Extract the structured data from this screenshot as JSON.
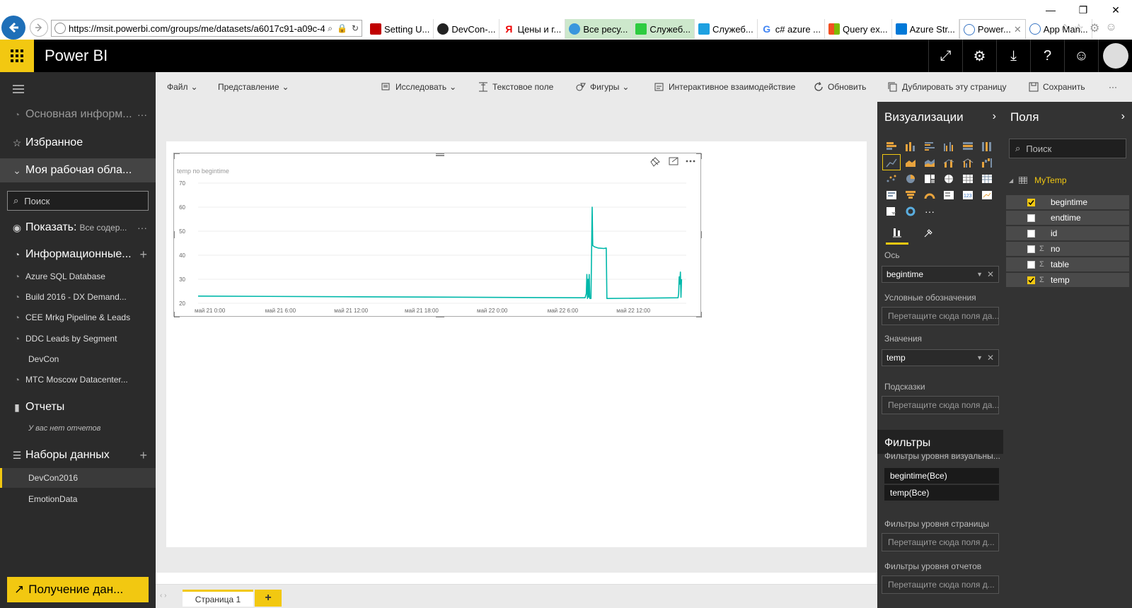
{
  "browser": {
    "url": "https://msit.powerbi.com/groups/me/datasets/a6017c91-a09c-4f",
    "tabs": [
      {
        "label": "Setting U...",
        "color": "#c00000"
      },
      {
        "label": "DevCon-...",
        "color": "#222222"
      },
      {
        "label": "Цены и г...",
        "color": "#e00000"
      },
      {
        "label": "Все ресу...",
        "color": "#3a96dd",
        "green": true
      },
      {
        "label": "Служеб...",
        "color": "#2ecc40",
        "green": true
      },
      {
        "label": "Служеб...",
        "color": "#1ea0e0"
      },
      {
        "label": "c# azure ...",
        "color": "#4285f4"
      },
      {
        "label": "Query ex...",
        "color": "#f25022"
      },
      {
        "label": "Azure Str...",
        "color": "#0078d7"
      },
      {
        "label": "Power...",
        "color": "#3a76c4",
        "active": true
      },
      {
        "label": "App Man...",
        "color": "#3a76c4"
      }
    ]
  },
  "header": {
    "app_name": "Power BI"
  },
  "leftnav": {
    "main_info": "Основная информ...",
    "favorites": "Избранное",
    "workspace": "Моя рабочая обла...",
    "search_placeholder": "Поиск",
    "show_label": "Показать:",
    "show_value": "Все содер...",
    "dashboards_label": "Информационные...",
    "dashboards": [
      "Azure SQL Database",
      "Build 2016 - DX Demand...",
      "CEE Mrkg Pipeline & Leads",
      "DDC Leads by Segment",
      "DevCon",
      "MTC Moscow Datacenter..."
    ],
    "reports_label": "Отчеты",
    "no_reports": "У вас нет отчетов",
    "datasets_label": "Наборы данных",
    "datasets": [
      "DevCon2016",
      "EmotionData"
    ],
    "get_data": "Получение дан..."
  },
  "toolbar": {
    "file": "Файл",
    "view": "Представление",
    "explore": "Исследовать",
    "textbox": "Текстовое поле",
    "shapes": "Фигуры",
    "interactions": "Интерактивное взаимодействие",
    "refresh": "Обновить",
    "duplicate": "Дублировать эту страницу",
    "save": "Сохранить"
  },
  "page_tab": "Страница 1",
  "chart_data": {
    "type": "line",
    "title": "temp по begintime",
    "ylim": [
      20,
      70
    ],
    "yticks": [
      20,
      30,
      40,
      50,
      60,
      70
    ],
    "xticks": [
      "май 21 0:00",
      "май 21 6:00",
      "май 21 12:00",
      "май 21 18:00",
      "май 22 0:00",
      "май 22 6:00",
      "май 22 12:00"
    ],
    "xlim_hours": [
      -1,
      40.5
    ],
    "color": "#00b8aa",
    "series": [
      {
        "points": [
          [
            -1,
            23
          ],
          [
            31.9,
            22.3
          ],
          [
            32.0,
            24
          ],
          [
            32.05,
            32
          ],
          [
            32.1,
            22
          ],
          [
            32.15,
            30
          ],
          [
            32.2,
            22.5
          ],
          [
            32.25,
            32
          ],
          [
            32.3,
            22
          ],
          [
            32.4,
            22
          ],
          [
            32.5,
            60
          ],
          [
            32.55,
            44
          ],
          [
            32.7,
            43.5
          ],
          [
            33.0,
            43
          ],
          [
            33.5,
            42.8
          ],
          [
            33.7,
            43
          ],
          [
            33.75,
            22
          ],
          [
            39.8,
            22.3
          ],
          [
            39.85,
            24
          ],
          [
            39.9,
            31
          ],
          [
            39.95,
            28
          ],
          [
            40.0,
            33
          ],
          [
            40.05,
            22.5
          ],
          [
            40.1,
            30
          ]
        ]
      }
    ]
  },
  "viz": {
    "title": "Визуализации",
    "axis_label": "Ось",
    "axis_field": "begintime",
    "legend_label": "Условные обозначения",
    "drop_placeholder": "Перетащите сюда поля да...",
    "values_label": "Значения",
    "values_field": "temp",
    "tooltips_label": "Подсказки",
    "filters_title": "Фильтры",
    "visual_filters_label": "Фильтры уровня визуальны...",
    "filter_chips": [
      "begintime(Все)",
      "temp(Все)"
    ],
    "page_filters_label": "Фильтры уровня страницы",
    "drop_placeholder_short": "Перетащите сюда поля д...",
    "report_filters_label": "Фильтры уровня отчетов"
  },
  "fields": {
    "title": "Поля",
    "search_placeholder": "Поиск",
    "table": "MyTemp",
    "items": [
      {
        "name": "begintime",
        "checked": true,
        "sigma": false
      },
      {
        "name": "endtime",
        "checked": false,
        "sigma": false
      },
      {
        "name": "id",
        "checked": false,
        "sigma": false
      },
      {
        "name": "no",
        "checked": false,
        "sigma": true
      },
      {
        "name": "table",
        "checked": false,
        "sigma": true
      },
      {
        "name": "temp",
        "checked": true,
        "sigma": true
      }
    ]
  }
}
